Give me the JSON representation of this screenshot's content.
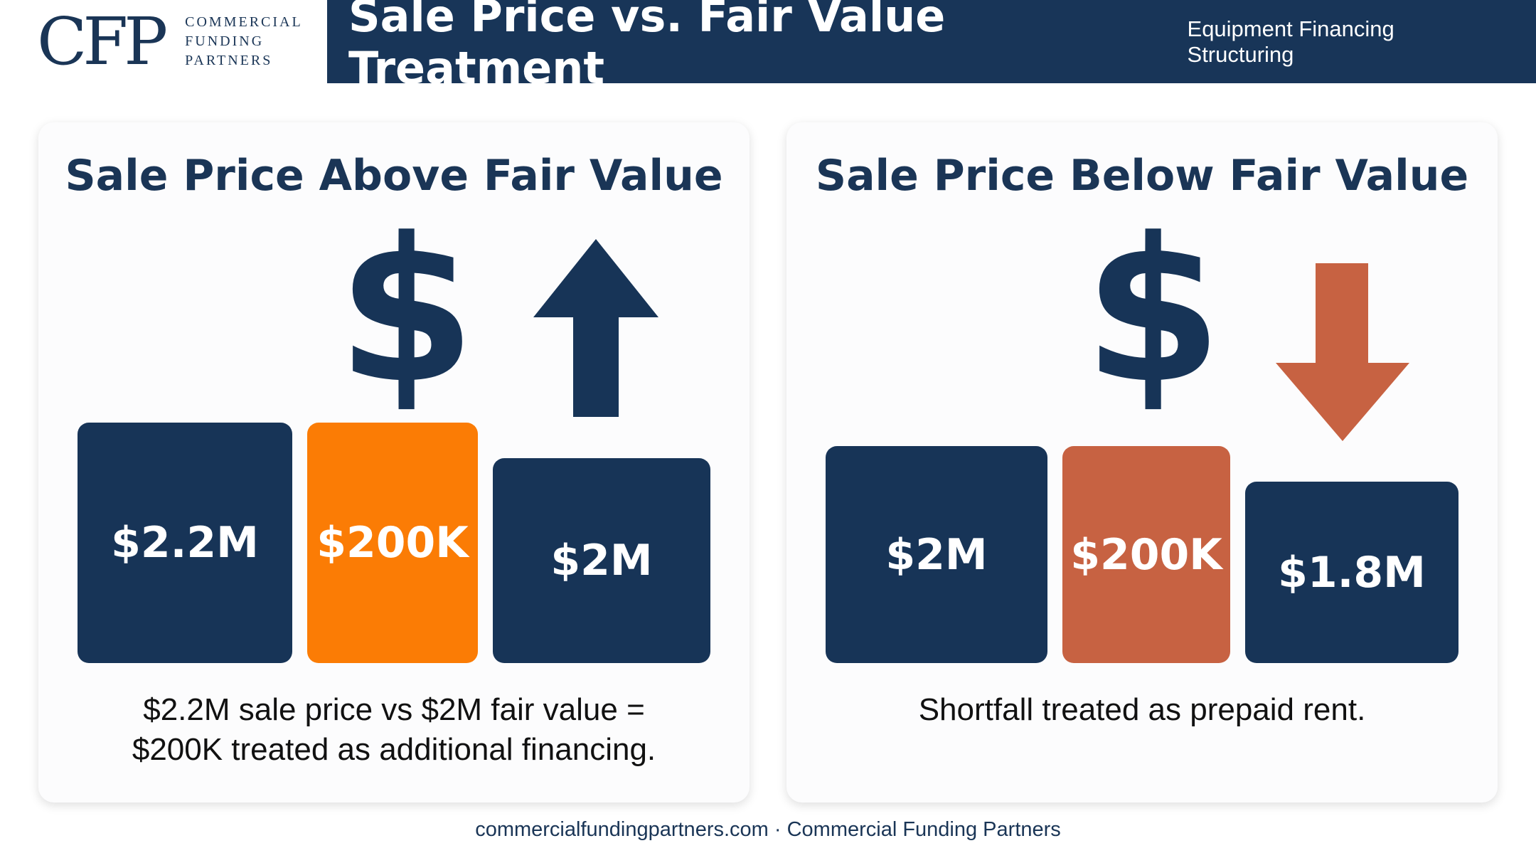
{
  "logo": {
    "mark": "CFP",
    "line1": "COMMERCIAL",
    "line2": "FUNDING",
    "line3": "PARTNERS"
  },
  "header": {
    "title": "Sale Price vs. Fair Value Treatment",
    "subtitle": "Equipment Financing Structuring"
  },
  "left_panel": {
    "title": "Sale Price Above Fair Value",
    "icon": "dollar-icon",
    "arrow": "arrow-up-icon",
    "blocks": [
      "$2.2M",
      "$200K",
      "$2M"
    ],
    "caption_line1": "$2.2M sale price vs $2M fair value =",
    "caption_line2": "$200K treated as additional financing."
  },
  "right_panel": {
    "title": "Sale Price Below Fair Value",
    "icon": "dollar-icon",
    "arrow": "arrow-down-icon",
    "blocks": [
      "$2M",
      "$200K",
      "$1.8M"
    ],
    "caption": "Shortfall treated as prepaid rent."
  },
  "colors": {
    "navy": "#173457",
    "orange": "#fb7c05",
    "rust": "#c76242"
  },
  "footer": {
    "text": "commercialfundingpartners.com · Commercial Funding Partners"
  }
}
